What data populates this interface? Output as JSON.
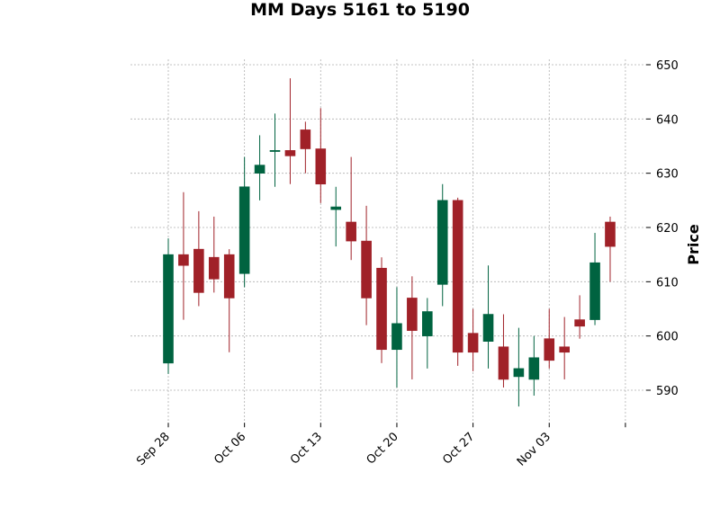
{
  "chart_data": {
    "type": "candlestick",
    "title": "MM Days 5161 to 5190",
    "ylabel": "Price",
    "xlabel": "",
    "ylim": [
      584,
      651
    ],
    "grid": true,
    "y_axis_side": "right",
    "y_ticks": [
      590,
      600,
      610,
      620,
      630,
      640,
      650
    ],
    "x_tick_labels": [
      "Sep 28",
      "Oct 06",
      "Oct 13",
      "Oct 20",
      "Oct 27",
      "Nov 03",
      ""
    ],
    "x_tick_positions": [
      0,
      5,
      10,
      15,
      20,
      25,
      30
    ],
    "colors": {
      "up": "#006340",
      "down": "#a02128"
    },
    "candles": [
      {
        "o": 595.0,
        "h": 618.0,
        "l": 593.0,
        "c": 615.0
      },
      {
        "o": 615.0,
        "h": 626.5,
        "l": 603.0,
        "c": 613.0
      },
      {
        "o": 616.0,
        "h": 623.0,
        "l": 605.5,
        "c": 608.0
      },
      {
        "o": 614.5,
        "h": 622.0,
        "l": 608.0,
        "c": 610.5
      },
      {
        "o": 615.0,
        "h": 616.0,
        "l": 597.0,
        "c": 607.0
      },
      {
        "o": 611.5,
        "h": 633.0,
        "l": 609.0,
        "c": 627.5
      },
      {
        "o": 630.0,
        "h": 637.0,
        "l": 625.0,
        "c": 631.5
      },
      {
        "o": 634.0,
        "h": 641.0,
        "l": 627.5,
        "c": 634.2
      },
      {
        "o": 634.2,
        "h": 647.5,
        "l": 628.0,
        "c": 633.2
      },
      {
        "o": 638.0,
        "h": 639.5,
        "l": 630.0,
        "c": 634.5
      },
      {
        "o": 634.5,
        "h": 642.0,
        "l": 624.5,
        "c": 628.0
      },
      {
        "o": 623.3,
        "h": 627.5,
        "l": 616.5,
        "c": 623.8
      },
      {
        "o": 621.0,
        "h": 633.0,
        "l": 614.0,
        "c": 617.5
      },
      {
        "o": 617.5,
        "h": 624.0,
        "l": 602.0,
        "c": 607.0
      },
      {
        "o": 612.5,
        "h": 614.5,
        "l": 595.0,
        "c": 597.5
      },
      {
        "o": 597.5,
        "h": 609.0,
        "l": 590.5,
        "c": 602.3
      },
      {
        "o": 607.0,
        "h": 611.0,
        "l": 592.0,
        "c": 601.0
      },
      {
        "o": 600.0,
        "h": 607.0,
        "l": 594.0,
        "c": 604.5
      },
      {
        "o": 609.5,
        "h": 628.0,
        "l": 605.5,
        "c": 625.0
      },
      {
        "o": 625.0,
        "h": 625.5,
        "l": 594.5,
        "c": 597.0
      },
      {
        "o": 600.5,
        "h": 605.0,
        "l": 593.5,
        "c": 597.0
      },
      {
        "o": 599.0,
        "h": 613.0,
        "l": 594.0,
        "c": 604.0
      },
      {
        "o": 598.0,
        "h": 604.0,
        "l": 590.5,
        "c": 592.0
      },
      {
        "o": 592.5,
        "h": 601.5,
        "l": 587.0,
        "c": 594.0
      },
      {
        "o": 592.0,
        "h": 600.0,
        "l": 589.0,
        "c": 596.0
      },
      {
        "o": 599.5,
        "h": 605.0,
        "l": 594.0,
        "c": 595.5
      },
      {
        "o": 598.0,
        "h": 603.5,
        "l": 592.0,
        "c": 597.0
      },
      {
        "o": 603.0,
        "h": 607.5,
        "l": 599.5,
        "c": 601.8
      },
      {
        "o": 603.0,
        "h": 619.0,
        "l": 602.0,
        "c": 613.5
      },
      {
        "o": 621.0,
        "h": 622.0,
        "l": 610.0,
        "c": 616.5
      }
    ]
  }
}
